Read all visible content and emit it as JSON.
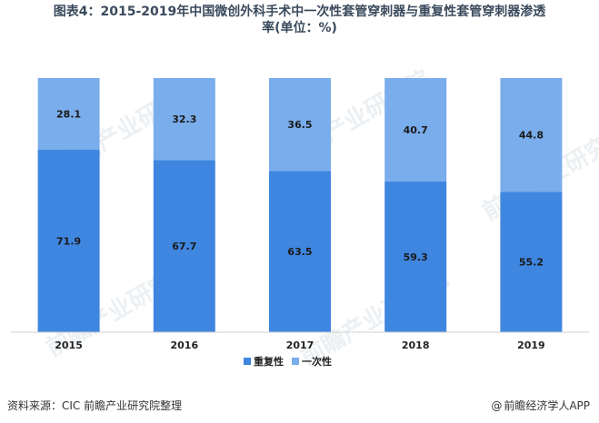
{
  "title_line1": "图表4：2015-2019年中国微创外科手术中一次性套管穿刺器与重复性套管穿刺器渗透",
  "title_line2": "率(单位：%)",
  "source": "资料来源：CIC  前瞻产业研究院整理",
  "brand": "前瞻经济学人APP",
  "brand_icon": "at-icon",
  "watermark": "前瞻产业研究院",
  "chart_data": {
    "type": "bar",
    "stacked": true,
    "categories": [
      "2015",
      "2016",
      "2017",
      "2018",
      "2019"
    ],
    "series": [
      {
        "name": "重复性",
        "color": "#3f86e0",
        "values": [
          71.9,
          67.7,
          63.5,
          59.3,
          55.2
        ]
      },
      {
        "name": "一次性",
        "color": "#7aadeb",
        "values": [
          28.1,
          32.3,
          36.5,
          40.7,
          44.8
        ]
      }
    ],
    "ylim": [
      0,
      100
    ],
    "legend": "bottom",
    "grid": false
  }
}
